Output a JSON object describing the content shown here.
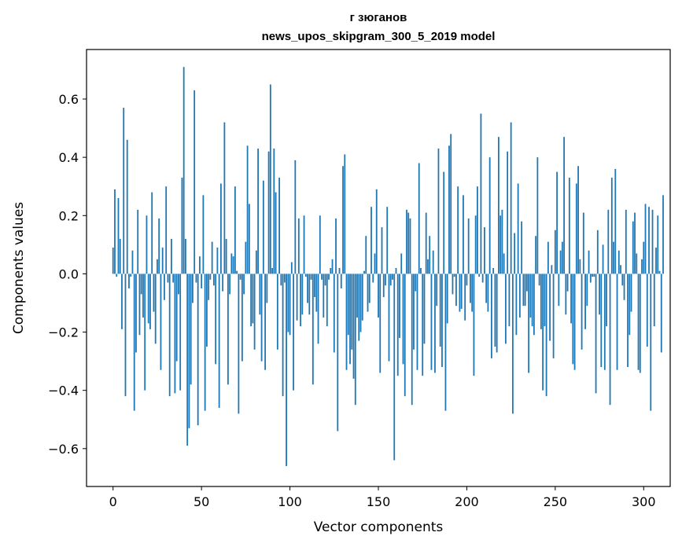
{
  "chart_data": {
    "type": "bar",
    "title": "г зюганов",
    "subtitle": "news_upos_skipgram_300_5_2019 model",
    "xlabel": "Vector components",
    "ylabel": "Components values",
    "xlim": [
      -15,
      315
    ],
    "ylim": [
      -0.73,
      0.77
    ],
    "xticks": [
      0,
      50,
      100,
      150,
      200,
      250,
      300
    ],
    "xtick_labels": [
      "0",
      "50",
      "100",
      "150",
      "200",
      "250",
      "300"
    ],
    "yticks": [
      -0.6,
      -0.4,
      -0.2,
      0.0,
      0.2,
      0.4,
      0.6
    ],
    "ytick_labels": [
      "−0.6",
      "−0.4",
      "−0.2",
      "0.0",
      "0.2",
      "0.4",
      "0.6"
    ],
    "grid": false,
    "bar_color": "#1f77b4",
    "series": [
      {
        "values": [
          0.09,
          0.29,
          -0.01,
          0.26,
          0.12,
          -0.19,
          0.57,
          -0.42,
          0.46,
          -0.05,
          -0.01,
          0.08,
          -0.47,
          -0.27,
          0.22,
          -0.21,
          -0.07,
          -0.15,
          -0.4,
          0.2,
          -0.17,
          -0.19,
          0.28,
          -0.13,
          -0.24,
          0.05,
          0.19,
          -0.33,
          0.09,
          -0.09,
          0.3,
          -0.03,
          -0.42,
          0.12,
          -0.03,
          -0.41,
          -0.3,
          -0.07,
          -0.4,
          0.33,
          0.71,
          0.12,
          -0.59,
          -0.53,
          -0.38,
          -0.1,
          0.63,
          -0.03,
          -0.52,
          0.06,
          -0.05,
          0.27,
          -0.47,
          -0.25,
          -0.09,
          -0.02,
          0.11,
          -0.04,
          -0.31,
          0.09,
          -0.46,
          0.31,
          -0.06,
          0.52,
          0.12,
          -0.38,
          -0.07,
          0.07,
          0.06,
          0.3,
          0.01,
          -0.48,
          -0.02,
          -0.3,
          -0.07,
          0.11,
          0.44,
          0.24,
          -0.18,
          -0.17,
          -0.26,
          0.08,
          0.43,
          -0.14,
          -0.3,
          0.32,
          -0.33,
          -0.1,
          0.42,
          0.65,
          0.02,
          0.43,
          0.28,
          -0.26,
          0.33,
          -0.04,
          -0.42,
          -0.03,
          -0.66,
          -0.2,
          -0.21,
          0.04,
          -0.4,
          0.39,
          -0.16,
          0.19,
          -0.18,
          -0.14,
          0.2,
          -0.01,
          -0.1,
          -0.14,
          -0.02,
          -0.38,
          -0.08,
          -0.13,
          -0.24,
          0.2,
          -0.02,
          -0.15,
          -0.04,
          -0.18,
          -0.02,
          0.02,
          0.05,
          -0.27,
          0.19,
          -0.54,
          0.02,
          -0.05,
          0.37,
          0.41,
          -0.33,
          -0.21,
          -0.31,
          -0.26,
          -0.36,
          -0.45,
          -0.15,
          -0.23,
          -0.2,
          -0.16,
          0.01,
          0.13,
          -0.13,
          -0.1,
          0.23,
          -0.03,
          0.07,
          0.29,
          -0.15,
          -0.34,
          0.16,
          -0.08,
          -0.04,
          0.23,
          -0.3,
          -0.04,
          -0.02,
          -0.64,
          0.02,
          -0.35,
          -0.22,
          0.07,
          -0.31,
          -0.42,
          0.22,
          0.21,
          0.19,
          -0.45,
          -0.26,
          -0.06,
          -0.33,
          0.38,
          0.02,
          -0.35,
          -0.24,
          0.21,
          0.05,
          0.13,
          -0.33,
          0.08,
          -0.34,
          -0.11,
          0.43,
          -0.25,
          -0.32,
          0.35,
          -0.47,
          -0.17,
          0.44,
          0.48,
          -0.07,
          -0.01,
          -0.11,
          0.3,
          -0.13,
          -0.12,
          0.27,
          -0.16,
          -0.04,
          0.19,
          -0.1,
          -0.13,
          -0.35,
          0.2,
          0.3,
          -0.01,
          0.55,
          -0.03,
          0.16,
          -0.1,
          -0.13,
          0.4,
          -0.29,
          0.02,
          -0.25,
          -0.27,
          0.47,
          0.2,
          0.22,
          0.07,
          -0.24,
          0.42,
          -0.18,
          0.52,
          -0.48,
          0.14,
          -0.21,
          0.31,
          -0.15,
          0.18,
          -0.11,
          -0.11,
          -0.06,
          -0.34,
          -0.15,
          -0.18,
          -0.21,
          0.13,
          0.4,
          -0.04,
          -0.19,
          -0.4,
          -0.18,
          -0.42,
          0.11,
          -0.23,
          0.03,
          -0.29,
          0.15,
          0.35,
          -0.11,
          0.08,
          0.11,
          0.47,
          -0.14,
          -0.06,
          0.33,
          -0.17,
          -0.31,
          -0.33,
          0.31,
          0.37,
          0.05,
          -0.26,
          0.21,
          -0.19,
          -0.11,
          0.08,
          -0.03,
          -0.01,
          -0.01,
          -0.41,
          0.15,
          -0.14,
          -0.32,
          0.1,
          -0.33,
          -0.18,
          0.22,
          -0.45,
          0.33,
          0.11,
          0.36,
          -0.33,
          0.08,
          0.03,
          -0.04,
          -0.09,
          0.22,
          -0.32,
          -0.21,
          -0.13,
          0.18,
          0.21,
          0.07,
          -0.33,
          -0.34,
          0.05,
          0.11,
          0.24,
          -0.25,
          0.23,
          -0.47,
          0.22,
          -0.18,
          0.09,
          0.2,
          0.01,
          -0.27,
          0.27
        ]
      }
    ]
  }
}
